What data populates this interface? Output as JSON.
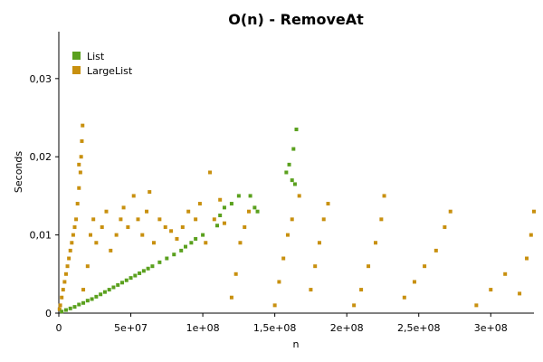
{
  "chart_data": {
    "type": "scatter",
    "title": "O(n) - RemoveAt",
    "xlabel": "n",
    "ylabel": "Seconds",
    "xlim": [
      0,
      330000000
    ],
    "ylim": [
      0,
      0.036
    ],
    "x_ticks": [
      {
        "value": 0,
        "label": "0"
      },
      {
        "value": 50000000,
        "label": "5e+07"
      },
      {
        "value": 100000000,
        "label": "1e+08"
      },
      {
        "value": 150000000,
        "label": "1,5e+08"
      },
      {
        "value": 200000000,
        "label": "2e+08"
      },
      {
        "value": 250000000,
        "label": "2,5e+08"
      },
      {
        "value": 300000000,
        "label": "3e+08"
      }
    ],
    "y_ticks": [
      {
        "value": 0,
        "label": "0"
      },
      {
        "value": 0.01,
        "label": "0,01"
      },
      {
        "value": 0.02,
        "label": "0,02"
      },
      {
        "value": 0.03,
        "label": "0,03"
      }
    ],
    "grid": false,
    "legend_position": "top-left",
    "series": [
      {
        "name": "List",
        "color": "#5aa01e",
        "points": [
          [
            2000000,
            0.0002
          ],
          [
            5000000,
            0.0004
          ],
          [
            8000000,
            0.0006
          ],
          [
            11000000,
            0.0008
          ],
          [
            14000000,
            0.0011
          ],
          [
            17000000,
            0.0013
          ],
          [
            20000000,
            0.0016
          ],
          [
            23000000,
            0.0018
          ],
          [
            26000000,
            0.0021
          ],
          [
            29000000,
            0.0024
          ],
          [
            32000000,
            0.0027
          ],
          [
            35000000,
            0.003
          ],
          [
            38000000,
            0.0033
          ],
          [
            41000000,
            0.0036
          ],
          [
            44000000,
            0.0039
          ],
          [
            47000000,
            0.0042
          ],
          [
            50000000,
            0.0045
          ],
          [
            53000000,
            0.0048
          ],
          [
            56000000,
            0.0051
          ],
          [
            59000000,
            0.0054
          ],
          [
            62000000,
            0.0057
          ],
          [
            65000000,
            0.006
          ],
          [
            70000000,
            0.0065
          ],
          [
            75000000,
            0.007
          ],
          [
            80000000,
            0.0075
          ],
          [
            85000000,
            0.008
          ],
          [
            88000000,
            0.0085
          ],
          [
            92000000,
            0.009
          ],
          [
            95000000,
            0.0095
          ],
          [
            100000000,
            0.01
          ],
          [
            110000000,
            0.0112
          ],
          [
            112000000,
            0.0125
          ],
          [
            115000000,
            0.0135
          ],
          [
            120000000,
            0.014
          ],
          [
            125000000,
            0.015
          ],
          [
            133000000,
            0.015
          ],
          [
            136000000,
            0.0135
          ],
          [
            138000000,
            0.013
          ],
          [
            158000000,
            0.018
          ],
          [
            160000000,
            0.019
          ],
          [
            163000000,
            0.021
          ],
          [
            165000000,
            0.0235
          ],
          [
            162000000,
            0.017
          ],
          [
            164000000,
            0.0165
          ]
        ]
      },
      {
        "name": "LargeList",
        "color": "#c8900f",
        "points": [
          [
            500000,
            0.0005
          ],
          [
            1000000,
            0.001
          ],
          [
            2000000,
            0.002
          ],
          [
            3000000,
            0.003
          ],
          [
            4000000,
            0.004
          ],
          [
            5000000,
            0.005
          ],
          [
            6000000,
            0.006
          ],
          [
            7000000,
            0.007
          ],
          [
            8000000,
            0.008
          ],
          [
            9000000,
            0.009
          ],
          [
            10000000,
            0.01
          ],
          [
            11000000,
            0.011
          ],
          [
            12000000,
            0.012
          ],
          [
            13000000,
            0.014
          ],
          [
            14000000,
            0.016
          ],
          [
            15000000,
            0.018
          ],
          [
            15500000,
            0.02
          ],
          [
            16000000,
            0.022
          ],
          [
            16500000,
            0.024
          ],
          [
            14000000,
            0.019
          ],
          [
            17000000,
            0.003
          ],
          [
            20000000,
            0.006
          ],
          [
            22000000,
            0.01
          ],
          [
            24000000,
            0.012
          ],
          [
            26000000,
            0.009
          ],
          [
            30000000,
            0.011
          ],
          [
            33000000,
            0.013
          ],
          [
            36000000,
            0.008
          ],
          [
            40000000,
            0.01
          ],
          [
            43000000,
            0.012
          ],
          [
            45000000,
            0.0135
          ],
          [
            48000000,
            0.011
          ],
          [
            52000000,
            0.015
          ],
          [
            55000000,
            0.012
          ],
          [
            58000000,
            0.01
          ],
          [
            61000000,
            0.013
          ],
          [
            63000000,
            0.0155
          ],
          [
            66000000,
            0.009
          ],
          [
            70000000,
            0.012
          ],
          [
            74000000,
            0.011
          ],
          [
            78000000,
            0.0105
          ],
          [
            82000000,
            0.0095
          ],
          [
            86000000,
            0.011
          ],
          [
            90000000,
            0.013
          ],
          [
            95000000,
            0.012
          ],
          [
            98000000,
            0.014
          ],
          [
            102000000,
            0.009
          ],
          [
            105000000,
            0.018
          ],
          [
            108000000,
            0.012
          ],
          [
            112000000,
            0.0145
          ],
          [
            115000000,
            0.0115
          ],
          [
            120000000,
            0.002
          ],
          [
            123000000,
            0.005
          ],
          [
            126000000,
            0.009
          ],
          [
            129000000,
            0.011
          ],
          [
            132000000,
            0.013
          ],
          [
            150000000,
            0.001
          ],
          [
            153000000,
            0.004
          ],
          [
            156000000,
            0.007
          ],
          [
            159000000,
            0.01
          ],
          [
            162000000,
            0.012
          ],
          [
            167000000,
            0.015
          ],
          [
            175000000,
            0.003
          ],
          [
            178000000,
            0.006
          ],
          [
            181000000,
            0.009
          ],
          [
            184000000,
            0.012
          ],
          [
            187000000,
            0.014
          ],
          [
            205000000,
            0.001
          ],
          [
            210000000,
            0.003
          ],
          [
            215000000,
            0.006
          ],
          [
            220000000,
            0.009
          ],
          [
            224000000,
            0.012
          ],
          [
            226000000,
            0.015
          ],
          [
            240000000,
            0.002
          ],
          [
            247000000,
            0.004
          ],
          [
            254000000,
            0.006
          ],
          [
            262000000,
            0.008
          ],
          [
            268000000,
            0.011
          ],
          [
            272000000,
            0.013
          ],
          [
            290000000,
            0.001
          ],
          [
            300000000,
            0.003
          ],
          [
            310000000,
            0.005
          ],
          [
            320000000,
            0.0025
          ],
          [
            325000000,
            0.007
          ],
          [
            328000000,
            0.01
          ],
          [
            330000000,
            0.013
          ]
        ]
      }
    ]
  }
}
